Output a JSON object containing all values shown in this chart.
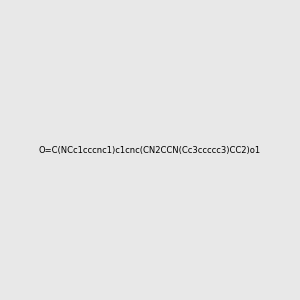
{
  "smiles": "O=C(NCc1cccnc1)c1cnc(CN2CCN(Cc3ccccc3)CC2)o1",
  "title": "",
  "bg_color": "#e8e8e8",
  "bond_color": "#1a1a1a",
  "n_color": "#2020cc",
  "o_color": "#cc2020",
  "figsize": [
    3.0,
    3.0
  ],
  "dpi": 100
}
